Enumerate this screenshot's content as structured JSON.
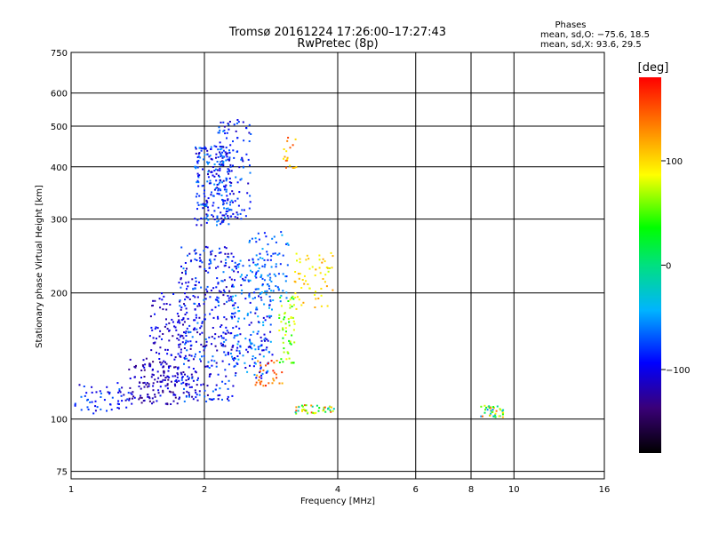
{
  "chart_data": {
    "type": "scatter",
    "title": "Tromsø 20161224 17:26:00–17:27:43",
    "subtitle": "RwPretec (8p)",
    "xlabel": "Frequency [MHz]",
    "ylabel": "Stationary phase Virtual Height [km]",
    "x_scale": "log",
    "y_scale": "log",
    "xlim": [
      1,
      16
    ],
    "ylim": [
      72,
      750
    ],
    "x_ticks": [
      "1",
      "2",
      "4",
      "6",
      "8",
      "10",
      "16"
    ],
    "x_tick_values": [
      1,
      2,
      4,
      6,
      8,
      10,
      16
    ],
    "y_ticks": [
      "75",
      "100",
      "200",
      "300",
      "400",
      "500",
      "600",
      "750"
    ],
    "y_tick_values": [
      75,
      100,
      200,
      300,
      400,
      500,
      600,
      750
    ],
    "grid": true,
    "info": {
      "heading": "Phases",
      "line1": "mean, sd,O: −75.6, 18.5",
      "line2": "mean, sd,X:  93.6, 29.5"
    },
    "colorbar": {
      "label": "[deg]",
      "range": [
        -180,
        180
      ],
      "ticks": [
        "100",
        "0",
        "−100"
      ],
      "tick_values": [
        100,
        0,
        -100
      ]
    },
    "clusters": [
      {
        "x": [
          1.02,
          1.35
        ],
        "y": [
          103,
          122
        ],
        "phase": [
          -120,
          -60
        ],
        "count": 55
      },
      {
        "x": [
          1.35,
          1.75
        ],
        "y": [
          108,
          140
        ],
        "phase": [
          -140,
          -95
        ],
        "count": 120
      },
      {
        "x": [
          1.5,
          1.95
        ],
        "y": [
          112,
          200
        ],
        "phase": [
          -130,
          -85
        ],
        "count": 160
      },
      {
        "x": [
          1.75,
          2.35
        ],
        "y": [
          110,
          260
        ],
        "phase": [
          -125,
          -55
        ],
        "count": 330
      },
      {
        "x": [
          1.9,
          2.3
        ],
        "y": [
          290,
          450
        ],
        "phase": [
          -120,
          -50
        ],
        "count": 220
      },
      {
        "x": [
          2.1,
          2.55
        ],
        "y": [
          300,
          520
        ],
        "phase": [
          -115,
          -55
        ],
        "count": 110
      },
      {
        "x": [
          2.3,
          2.85
        ],
        "y": [
          125,
          240
        ],
        "phase": [
          -115,
          -40
        ],
        "count": 190
      },
      {
        "x": [
          2.5,
          3.1
        ],
        "y": [
          190,
          280
        ],
        "phase": [
          -90,
          -40
        ],
        "count": 90
      },
      {
        "x": [
          2.6,
          3.0
        ],
        "y": [
          120,
          138
        ],
        "phase": [
          115,
          175
        ],
        "count": 30
      },
      {
        "x": [
          2.95,
          3.2
        ],
        "y": [
          135,
          200
        ],
        "phase": [
          30,
          90
        ],
        "count": 55
      },
      {
        "x": [
          3.0,
          3.25
        ],
        "y": [
          395,
          500
        ],
        "phase": [
          85,
          155
        ],
        "count": 18
      },
      {
        "x": [
          3.2,
          3.9
        ],
        "y": [
          182,
          250
        ],
        "phase": [
          75,
          125
        ],
        "count": 60
      },
      {
        "x": [
          3.2,
          3.95
        ],
        "y": [
          103,
          108
        ],
        "phase": [
          -40,
          175
        ],
        "count": 45
      },
      {
        "x": [
          8.4,
          9.5
        ],
        "y": [
          101,
          108
        ],
        "phase": [
          -80,
          145
        ],
        "count": 40
      }
    ]
  }
}
